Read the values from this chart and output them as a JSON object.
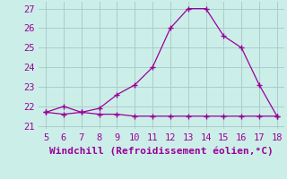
{
  "title": "",
  "xlabel": "Windchill (Refroidissement éolien,°C)",
  "line1_x": [
    5,
    6,
    7,
    8,
    9,
    10,
    11,
    12,
    13,
    14,
    15,
    16,
    17,
    18
  ],
  "line1_y": [
    21.7,
    22.0,
    21.7,
    21.9,
    22.6,
    23.1,
    24.0,
    26.0,
    27.0,
    27.0,
    25.6,
    25.0,
    23.1,
    21.5
  ],
  "line2_x": [
    5,
    6,
    7,
    8,
    9,
    10,
    11,
    12,
    13,
    14,
    15,
    16,
    17,
    18
  ],
  "line2_y": [
    21.7,
    21.6,
    21.7,
    21.6,
    21.6,
    21.5,
    21.5,
    21.5,
    21.5,
    21.5,
    21.5,
    21.5,
    21.5,
    21.5
  ],
  "line_color": "#990099",
  "bg_color": "#cceee8",
  "grid_color": "#aacccc",
  "text_color": "#990099",
  "xlim": [
    4.6,
    18.4
  ],
  "ylim": [
    20.85,
    27.35
  ],
  "xticks": [
    5,
    6,
    7,
    8,
    9,
    10,
    11,
    12,
    13,
    14,
    15,
    16,
    17,
    18
  ],
  "yticks": [
    21,
    22,
    23,
    24,
    25,
    26,
    27
  ],
  "xlabel_fontsize": 8,
  "tick_fontsize": 7.5
}
